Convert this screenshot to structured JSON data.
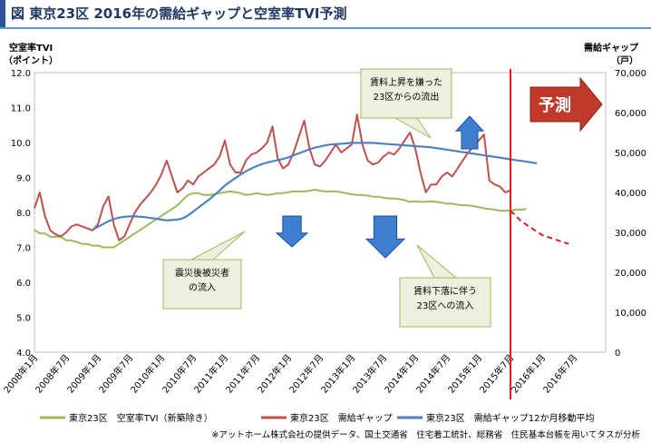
{
  "title": "図 東京23区 2016年の需給ギャップと空室率TVI予測",
  "chart_data": {
    "type": "line",
    "left_axis_label_line1": "空室率TVI",
    "left_axis_label_line2": "（ポイント）",
    "right_axis_label_line1": "需給ギャップ",
    "right_axis_label_line2": "（戸）",
    "y_left_ticks": [
      "12.0",
      "11.0",
      "10.0",
      "9.0",
      "8.0",
      "7.0",
      "6.0",
      "5.0",
      "4.0"
    ],
    "y_right_ticks": [
      "70,000",
      "60,000",
      "50,000",
      "40,000",
      "30,000",
      "20,000",
      "10,000",
      "0"
    ],
    "ylim_left": [
      4.0,
      12.0
    ],
    "ylim_right": [
      0,
      70000
    ],
    "x_ticks": [
      "2008年1月",
      "2008年7月",
      "2009年1月",
      "2009年7月",
      "2010年1月",
      "2010年7月",
      "2011年1月",
      "2011年7月",
      "2012年1月",
      "2012年7月",
      "2013年1月",
      "2013年7月",
      "2014年1月",
      "2014年7月",
      "2015年1月",
      "2015年7月",
      "2016年1月",
      "2016年7月"
    ],
    "forecast_start": "2015年7月",
    "forecast_label": "予測",
    "series": [
      {
        "name": "東京23区　空室率TVI（新築除き）",
        "color": "#9bbb59",
        "axis": "left",
        "values": [
          7.5,
          7.4,
          7.4,
          7.3,
          7.3,
          7.3,
          7.2,
          7.2,
          7.15,
          7.1,
          7.1,
          7.05,
          7.05,
          7.0,
          7.0,
          7.0,
          7.1,
          7.2,
          7.3,
          7.4,
          7.5,
          7.6,
          7.7,
          7.8,
          7.9,
          8.0,
          8.1,
          8.2,
          8.35,
          8.5,
          8.55,
          8.55,
          8.5,
          8.5,
          8.52,
          8.55,
          8.58,
          8.6,
          8.58,
          8.55,
          8.5,
          8.52,
          8.55,
          8.52,
          8.5,
          8.52,
          8.55,
          8.55,
          8.58,
          8.6,
          8.6,
          8.6,
          8.62,
          8.65,
          8.62,
          8.6,
          8.6,
          8.6,
          8.58,
          8.55,
          8.52,
          8.5,
          8.5,
          8.48,
          8.45,
          8.45,
          8.42,
          8.4,
          8.4,
          8.38,
          8.35,
          8.3,
          8.32,
          8.3,
          8.3,
          8.32,
          8.3,
          8.28,
          8.25,
          8.25,
          8.22,
          8.2,
          8.2,
          8.18,
          8.15,
          8.12,
          8.1,
          8.08,
          8.05,
          8.05,
          8.05,
          8.08,
          8.08,
          8.1
        ]
      },
      {
        "name": "東京23区　需給ギャップ",
        "color": "#c0504d",
        "axis": "right",
        "values": [
          36000,
          40000,
          34000,
          30500,
          29500,
          29000,
          30000,
          31500,
          32000,
          31500,
          31000,
          30500,
          32000,
          36500,
          39000,
          32000,
          28000,
          29000,
          32000,
          35000,
          37000,
          38500,
          40000,
          42000,
          44500,
          48000,
          44000,
          40000,
          41000,
          43000,
          42000,
          44000,
          45000,
          46000,
          47000,
          49000,
          53000,
          47000,
          45000,
          45000,
          48000,
          49500,
          50000,
          51000,
          52500,
          56500,
          48500,
          46000,
          47000,
          50000,
          54000,
          58000,
          51000,
          47000,
          46500,
          48000,
          50000,
          52000,
          50000,
          51000,
          52000,
          59500,
          52000,
          48000,
          47000,
          47500,
          49000,
          50000,
          49500,
          51000,
          53000,
          55000,
          51000,
          45000,
          40000,
          42000,
          42000,
          44000,
          45000,
          44000,
          46000,
          48000,
          50000,
          51500,
          53000,
          54500,
          43000,
          42000,
          41500,
          40000,
          40500
        ]
      },
      {
        "name": "東京23区　需給ギャップ12か月移動平均",
        "color": "#4f81bd",
        "axis": "right",
        "values": [
          30700,
          31400,
          32100,
          32800,
          33300,
          33700,
          33900,
          34000,
          34000,
          33900,
          33800,
          33600,
          33400,
          33200,
          33000,
          33100,
          33200,
          33500,
          34200,
          35200,
          36200,
          37200,
          38200,
          39300,
          40500,
          41700,
          42700,
          43600,
          44500,
          45300,
          46000,
          46600,
          47100,
          47500,
          47800,
          48100,
          48400,
          48800,
          49300,
          49800,
          50300,
          50800,
          51200,
          51500,
          51800,
          52000,
          52100,
          52200,
          52300,
          52400,
          52400,
          52400,
          52400,
          52400,
          52300,
          52200,
          52100,
          52000,
          51900,
          51800,
          51700,
          51600,
          51500,
          51400,
          51300,
          51100,
          50900,
          50700,
          50500,
          50300,
          50100,
          49900,
          49700,
          49500,
          49300,
          49100,
          48900,
          48700,
          48500,
          48300,
          48100,
          47900,
          47700,
          47500,
          47300
        ]
      },
      {
        "name": "forecast",
        "color": "#e02020",
        "axis": "left",
        "values": [
          8.05,
          7.9,
          7.75,
          7.65,
          7.55,
          7.45,
          7.35,
          7.3,
          7.25,
          7.2,
          7.15,
          7.1
        ]
      }
    ],
    "legend": [
      "東京23区　空室率TVI（新築除き）",
      "東京23区　需給ギャップ",
      "東京23区　需給ギャップ12か月移動平均"
    ],
    "annotations": [
      {
        "text_lines": [
          "賃料上昇を嫌った",
          "23区からの流出"
        ]
      },
      {
        "text_lines": [
          "震災後被災者",
          "の流入"
        ]
      },
      {
        "text_lines": [
          "賃料下落に伴う",
          "23区への流入"
        ]
      }
    ]
  },
  "source_note": "※アットホーム株式会社の提供データ、国土交通省　住宅着工統計、総務省　住民基本台帳を用いてタスが分析"
}
